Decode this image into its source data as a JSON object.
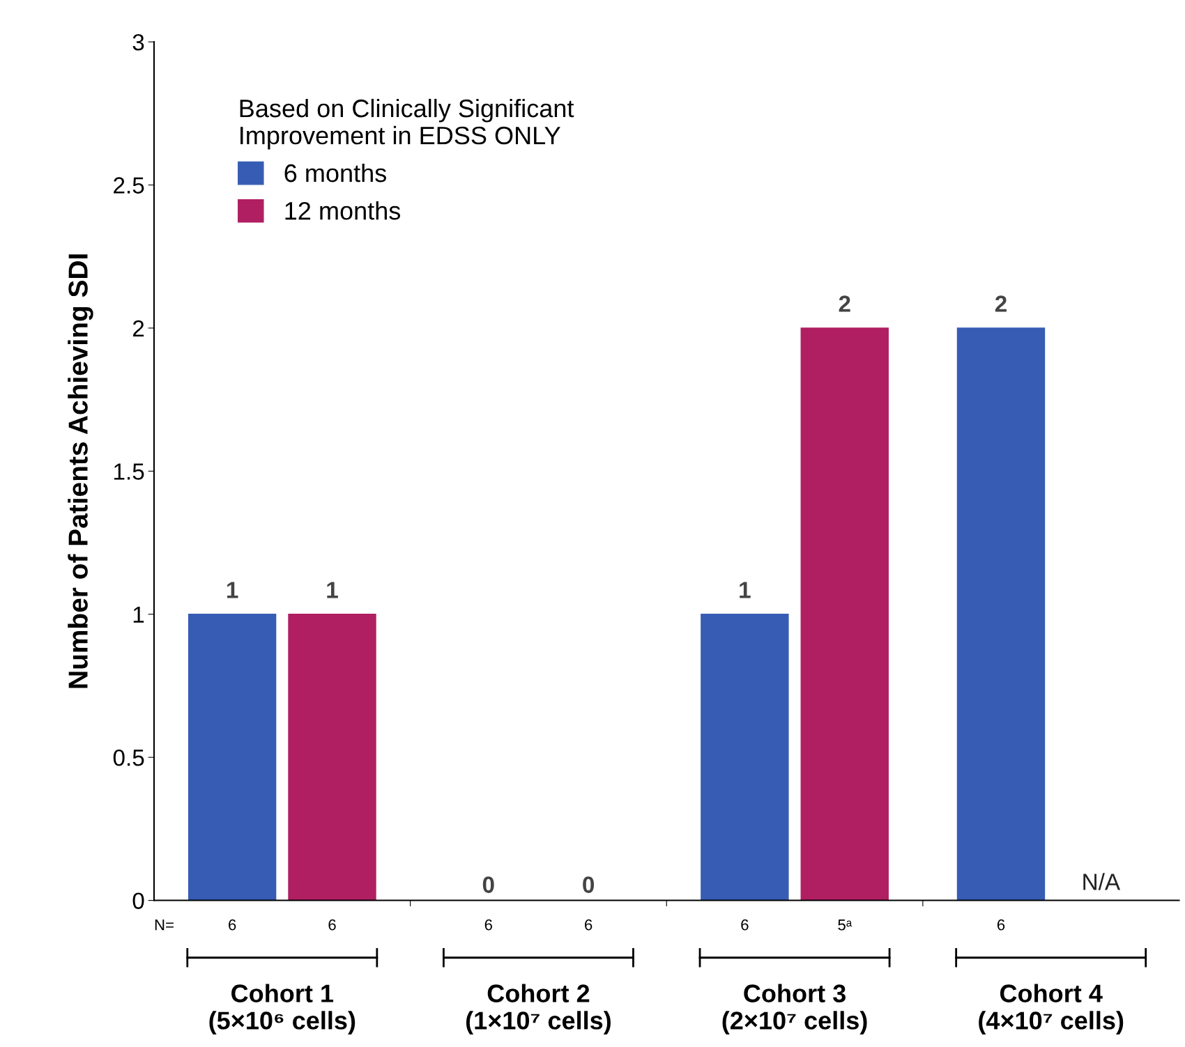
{
  "chart_data": {
    "type": "bar",
    "ylabel": "Number of Patients Achieving SDI",
    "legend_title": "Based on Clinically Significant\nImprovement in EDSS ONLY",
    "categories": [
      "Cohort 1\n(5×10⁶ cells)",
      "Cohort 2\n(1×10⁷ cells)",
      "Cohort 3\n(2×10⁷ cells)",
      "Cohort 4\n(4×10⁷ cells)"
    ],
    "series": [
      {
        "name": "6 months",
        "color": "#375cb3",
        "values": [
          1,
          0,
          1,
          2
        ],
        "value_labels": [
          "1",
          "0",
          "1",
          "2"
        ]
      },
      {
        "name": "12 months",
        "color": "#b01f62",
        "values": [
          1,
          0,
          2,
          null
        ],
        "value_labels": [
          "1",
          "0",
          "2",
          "N/A"
        ]
      }
    ],
    "annotations": [
      "N=",
      "6",
      "6",
      "6",
      "6",
      "6",
      "5ᵃ",
      "6"
    ],
    "ylim": [
      0,
      3
    ],
    "yticks": [
      0,
      0.5,
      1,
      1.5,
      2,
      2.5,
      3
    ],
    "grid": false,
    "legend": "top left"
  }
}
